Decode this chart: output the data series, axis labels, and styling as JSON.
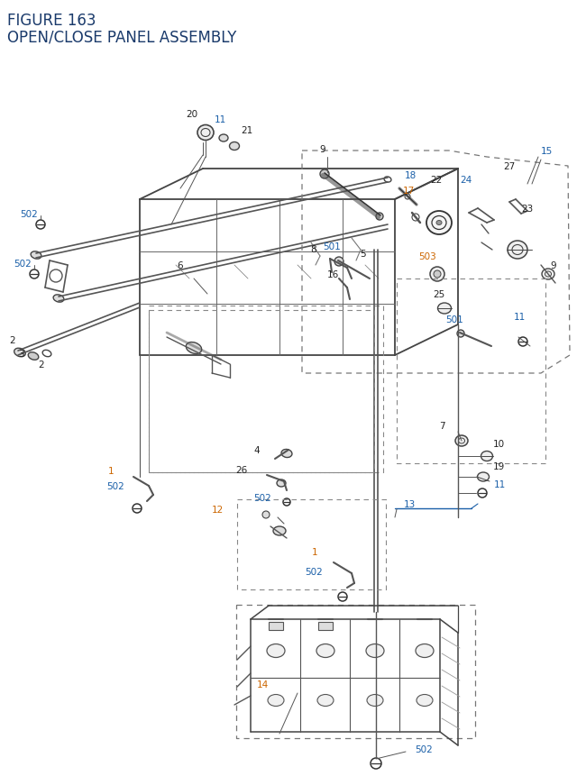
{
  "title_line1": "FIGURE 163",
  "title_line2": "OPEN/CLOSE PANEL ASSEMBLY",
  "title_color": "#1a3a6b",
  "title_fontsize": 11.5,
  "bg_color": "#ffffff",
  "lc_black": "#222222",
  "lc_blue": "#1a5fa8",
  "lc_orange": "#cc6600",
  "lc_darkblue": "#1a3a6b",
  "fig_width": 6.4,
  "fig_height": 8.62,
  "dpi": 100
}
